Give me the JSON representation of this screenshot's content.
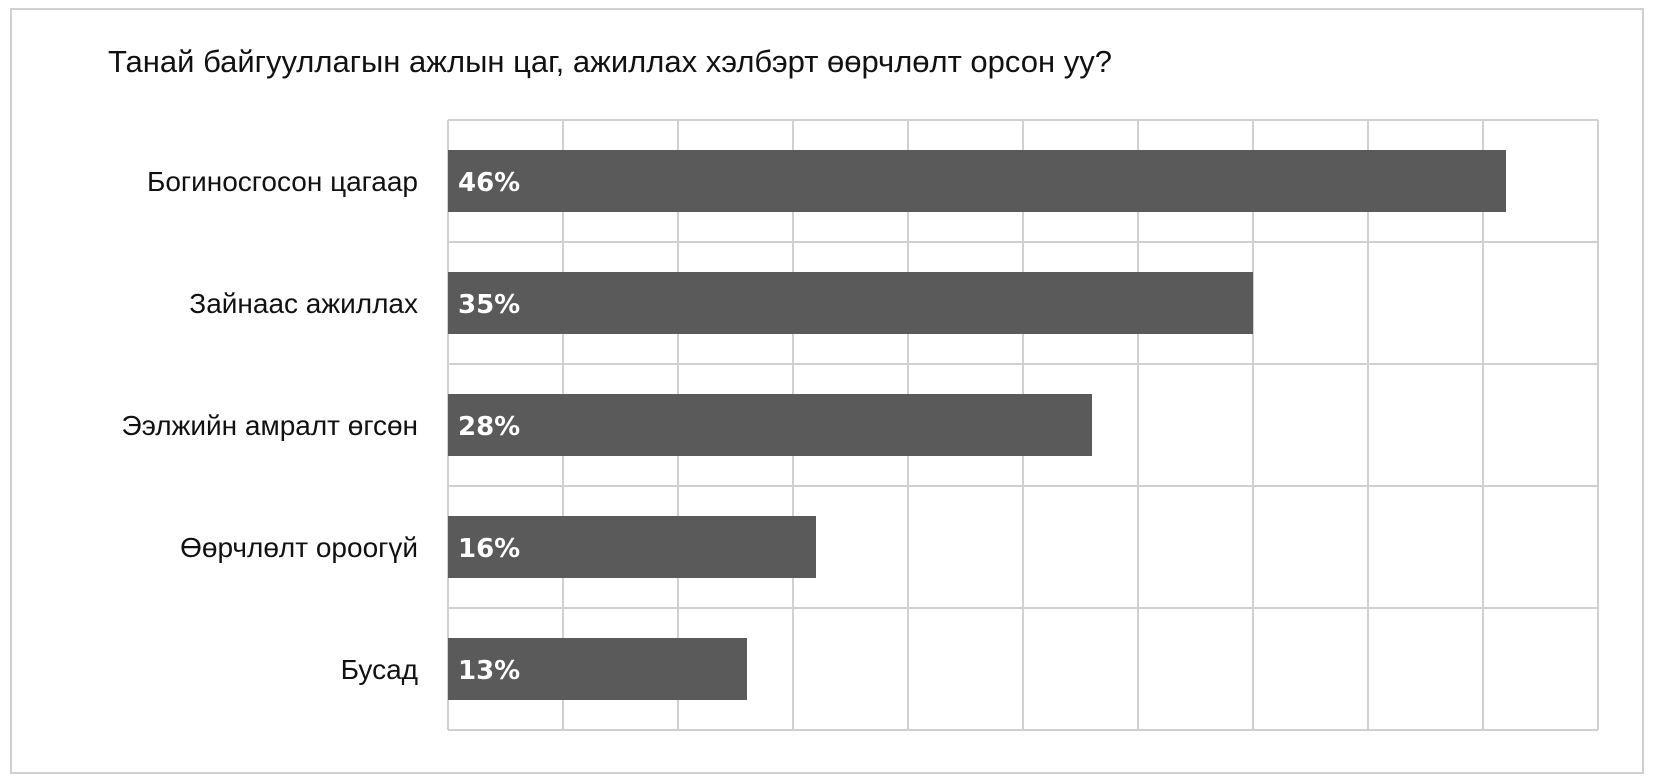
{
  "chart_data": {
    "type": "bar",
    "orientation": "horizontal",
    "title": "Танай байгууллагын ажлын цаг, ажиллах хэлбэрт өөрчлөлт орсон уу?",
    "categories": [
      "Богиносгосон цагаар",
      "Зайнаас ажиллах",
      "Ээлжийн амралт өгсөн",
      "Өөрчлөлт ороогүй",
      "Бусад"
    ],
    "values": [
      46,
      35,
      28,
      16,
      13
    ],
    "value_labels": [
      "46%",
      "35%",
      "28%",
      "16%",
      "13%"
    ],
    "unit": "%",
    "xlim": [
      0,
      50
    ],
    "gridlines": 10,
    "grid": true,
    "bar_color": "#5a5a5a",
    "grid_color": "#d0d0d0",
    "label_color": "#ffffff"
  }
}
